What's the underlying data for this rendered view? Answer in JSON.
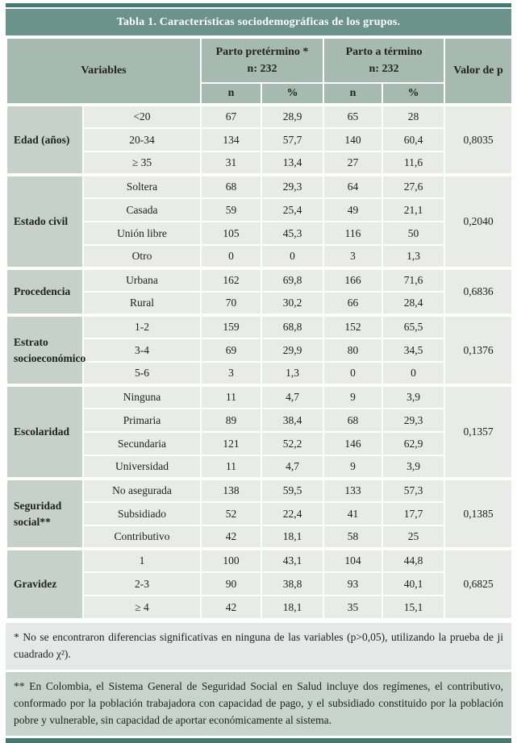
{
  "table": {
    "title": "Tabla 1. Características sociodemográficas de los grupos.",
    "header": {
      "variables_label": "Variables",
      "preterm_group_line1": "Parto pretérmino *",
      "preterm_group_line2": "n: 232",
      "term_group_line1": "Parto a término",
      "term_group_line2": "n: 232",
      "p_value_label": "Valor de p",
      "sub_n_label": "n",
      "sub_percent_label": "%"
    },
    "groups": [
      {
        "variable": "Edad (años)",
        "p": "0,8035",
        "rows": [
          {
            "category": "<20",
            "n1": "67",
            "pct1": "28,9",
            "n2": "65",
            "pct2": "28"
          },
          {
            "category": "20-34",
            "n1": "134",
            "pct1": "57,7",
            "n2": "140",
            "pct2": "60,4"
          },
          {
            "category": "≥ 35",
            "n1": "31",
            "pct1": "13,4",
            "n2": "27",
            "pct2": "11,6"
          }
        ]
      },
      {
        "variable": "Estado civil",
        "p": "0,2040",
        "rows": [
          {
            "category": "Soltera",
            "n1": "68",
            "pct1": "29,3",
            "n2": "64",
            "pct2": "27,6"
          },
          {
            "category": "Casada",
            "n1": "59",
            "pct1": "25,4",
            "n2": "49",
            "pct2": "21,1"
          },
          {
            "category": "Unión libre",
            "n1": "105",
            "pct1": "45,3",
            "n2": "116",
            "pct2": "50"
          },
          {
            "category": "Otro",
            "n1": "0",
            "pct1": "0",
            "n2": "3",
            "pct2": "1,3"
          }
        ]
      },
      {
        "variable": "Procedencia",
        "p": "0,6836",
        "rows": [
          {
            "category": "Urbana",
            "n1": "162",
            "pct1": "69,8",
            "n2": "166",
            "pct2": "71,6"
          },
          {
            "category": "Rural",
            "n1": "70",
            "pct1": "30,2",
            "n2": "66",
            "pct2": "28,4"
          }
        ]
      },
      {
        "variable": "Estrato socioeconómico",
        "p": "0,1376",
        "rows": [
          {
            "category": "1-2",
            "n1": "159",
            "pct1": "68,8",
            "n2": "152",
            "pct2": "65,5"
          },
          {
            "category": "3-4",
            "n1": "69",
            "pct1": "29,9",
            "n2": "80",
            "pct2": "34,5"
          },
          {
            "category": "5-6",
            "n1": "3",
            "pct1": "1,3",
            "n2": "0",
            "pct2": "0"
          }
        ]
      },
      {
        "variable": "Escolaridad",
        "p": "0,1357",
        "rows": [
          {
            "category": "Ninguna",
            "n1": "11",
            "pct1": "4,7",
            "n2": "9",
            "pct2": "3,9"
          },
          {
            "category": "Primaria",
            "n1": "89",
            "pct1": "38,4",
            "n2": "68",
            "pct2": "29,3"
          },
          {
            "category": "Secundaria",
            "n1": "121",
            "pct1": "52,2",
            "n2": "146",
            "pct2": "62,9"
          },
          {
            "category": "Universidad",
            "n1": "11",
            "pct1": "4,7",
            "n2": "9",
            "pct2": "3,9"
          }
        ]
      },
      {
        "variable": "Seguridad social**",
        "p": "0,1385",
        "rows": [
          {
            "category": "No asegurada",
            "n1": "138",
            "pct1": "59,5",
            "n2": "133",
            "pct2": "57,3"
          },
          {
            "category": "Subsidiado",
            "n1": "52",
            "pct1": "22,4",
            "n2": "41",
            "pct2": "17,7"
          },
          {
            "category": "Contributivo",
            "n1": "42",
            "pct1": "18,1",
            "n2": "58",
            "pct2": "25"
          }
        ]
      },
      {
        "variable": "Gravidez",
        "p": "0,6825",
        "rows": [
          {
            "category": "1",
            "n1": "100",
            "pct1": "43,1",
            "n2": "104",
            "pct2": "44,8"
          },
          {
            "category": "2-3",
            "n1": "90",
            "pct1": "38,8",
            "n2": "93",
            "pct2": "40,1"
          },
          {
            "category": "≥ 4",
            "n1": "42",
            "pct1": "18,1",
            "n2": "35",
            "pct2": "15,1"
          }
        ]
      }
    ],
    "footnotes": [
      "* No se encontraron diferencias significativas en ninguna de las variables (p>0,05), utilizando la prueba de ji cuadrado χ²).",
      "** En Colombia, el Sistema General de Seguridad Social en Salud incluye dos regímenes, el contributivo, conformado por la población trabajadora con capacidad de pago, y el subsidiado constituido por la población pobre y vulnerable, sin capacidad de aportar económicamente al sistema."
    ]
  },
  "colors": {
    "teal_dark": "#417a72",
    "teal_title": "#6b938c",
    "header_bg": "#a7bab2",
    "variable_bg": "#c6d1cb",
    "cell_bg": "#e9ebe9",
    "footnote1_bg": "#e4e8e6",
    "footnote2_bg": "#c7d3cd"
  }
}
